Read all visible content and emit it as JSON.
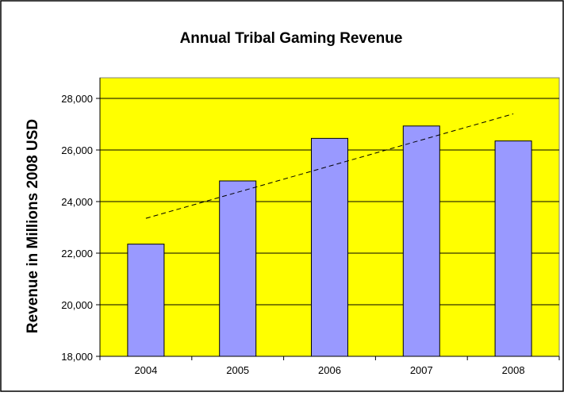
{
  "chart_data": {
    "type": "bar",
    "title": "Annual Tribal Gaming Revenue",
    "xlabel": "",
    "ylabel": "Revenue in Millions 2008 USD",
    "categories": [
      "2004",
      "2005",
      "2006",
      "2007",
      "2008"
    ],
    "values": [
      22350,
      24800,
      26450,
      26930,
      26350
    ],
    "ylim": [
      18000,
      28800
    ],
    "yticks": [
      18000,
      20000,
      22000,
      24000,
      26000,
      28000
    ],
    "ytick_labels": [
      "18,000",
      "20,000",
      "22,000",
      "24,000",
      "26,000",
      "28,000"
    ],
    "trendline": {
      "type": "linear",
      "start": 23350,
      "end": 27400,
      "style": "dashed"
    },
    "grid": true,
    "legend": "none",
    "colors": {
      "plot_background": "#ffff00",
      "bar_fill": "#9999ff",
      "bar_stroke": "#000000",
      "trendline": "#000000"
    }
  }
}
